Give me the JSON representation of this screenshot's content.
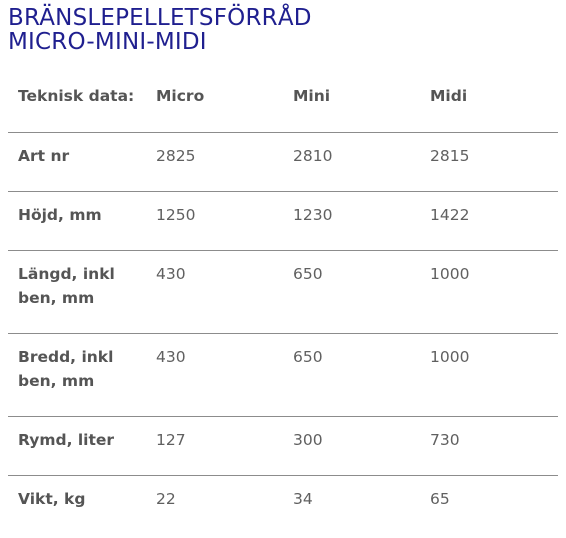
{
  "title": {
    "line1": "BRÄNSLEPELLETSFÖRRÅD",
    "line2": "MICRO-MINI-MIDI"
  },
  "table": {
    "headers": [
      "Teknisk data:",
      "Micro",
      "Mini",
      "Midi"
    ],
    "rows": [
      {
        "label": "Art nr",
        "values": [
          "2825",
          "2810",
          "2815"
        ]
      },
      {
        "label": "Höjd, mm",
        "values": [
          "1250",
          "1230",
          "1422"
        ]
      },
      {
        "label": "Längd, inkl ben, mm",
        "values": [
          "430",
          "650",
          "1000"
        ]
      },
      {
        "label": "Bredd, inkl ben, mm",
        "values": [
          "430",
          "650",
          "1000"
        ]
      },
      {
        "label": "Rymd, liter",
        "values": [
          "127",
          "300",
          "730"
        ]
      },
      {
        "label": "Vikt, kg",
        "values": [
          "22",
          "34",
          "65"
        ]
      }
    ]
  },
  "colors": {
    "title": "#1f1f8f",
    "text": "#555555",
    "divider": "#8c8c8c"
  }
}
